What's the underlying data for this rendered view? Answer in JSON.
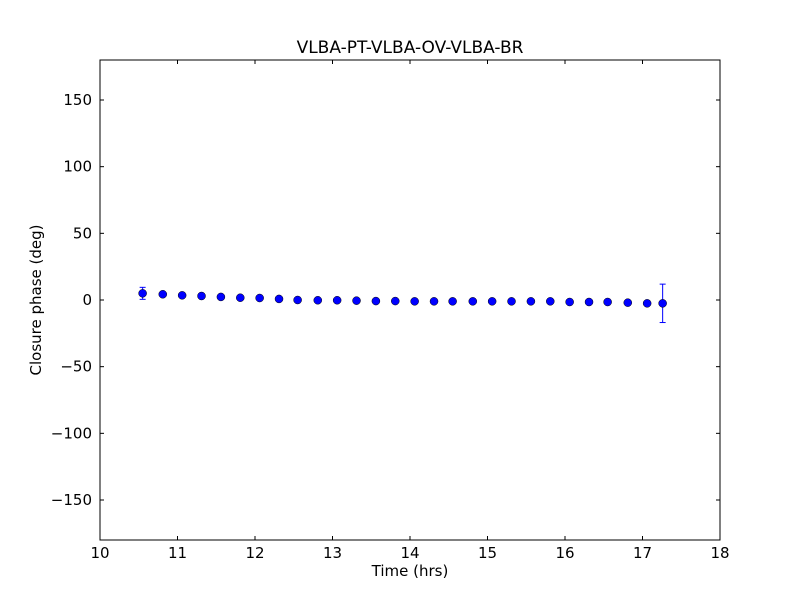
{
  "chart_data": {
    "type": "scatter",
    "title": "VLBA-PT-VLBA-OV-VLBA-BR",
    "xlabel": "Time (hrs)",
    "ylabel": "Closure phase (deg)",
    "xlim": [
      10,
      18
    ],
    "ylim": [
      -180,
      180
    ],
    "xticks": [
      "10",
      "11",
      "12",
      "13",
      "14",
      "15",
      "16",
      "17",
      "18"
    ],
    "xtick_values": [
      10,
      11,
      12,
      13,
      14,
      15,
      16,
      17,
      18
    ],
    "yticks": [
      "150",
      "100",
      "50",
      "0",
      "−50",
      "−100",
      "−150"
    ],
    "ytick_values": [
      150,
      100,
      50,
      0,
      -50,
      -100,
      -150
    ],
    "grid": false,
    "marker_color": "#0000ff",
    "x": [
      10.55,
      10.81,
      11.06,
      11.31,
      11.56,
      11.81,
      12.06,
      12.31,
      12.55,
      12.81,
      13.06,
      13.31,
      13.56,
      13.81,
      14.06,
      14.31,
      14.55,
      14.81,
      15.06,
      15.31,
      15.56,
      15.81,
      16.06,
      16.31,
      16.55,
      16.81,
      17.06,
      17.26
    ],
    "y": [
      5.0,
      4.3,
      3.5,
      3.0,
      2.3,
      1.7,
      1.5,
      0.8,
      0.0,
      -0.2,
      -0.2,
      -0.5,
      -0.8,
      -0.8,
      -1.0,
      -1.0,
      -1.0,
      -1.0,
      -1.0,
      -1.0,
      -1.0,
      -1.0,
      -1.5,
      -1.5,
      -1.5,
      -2.0,
      -2.5,
      -2.5
    ],
    "yerr": [
      4.5,
      1,
      1,
      1,
      1,
      1,
      1,
      1,
      1,
      1,
      1,
      1,
      1,
      1,
      1,
      1,
      1,
      1,
      1,
      1,
      1,
      1,
      1,
      1,
      1,
      1,
      1.5,
      14.4
    ]
  }
}
